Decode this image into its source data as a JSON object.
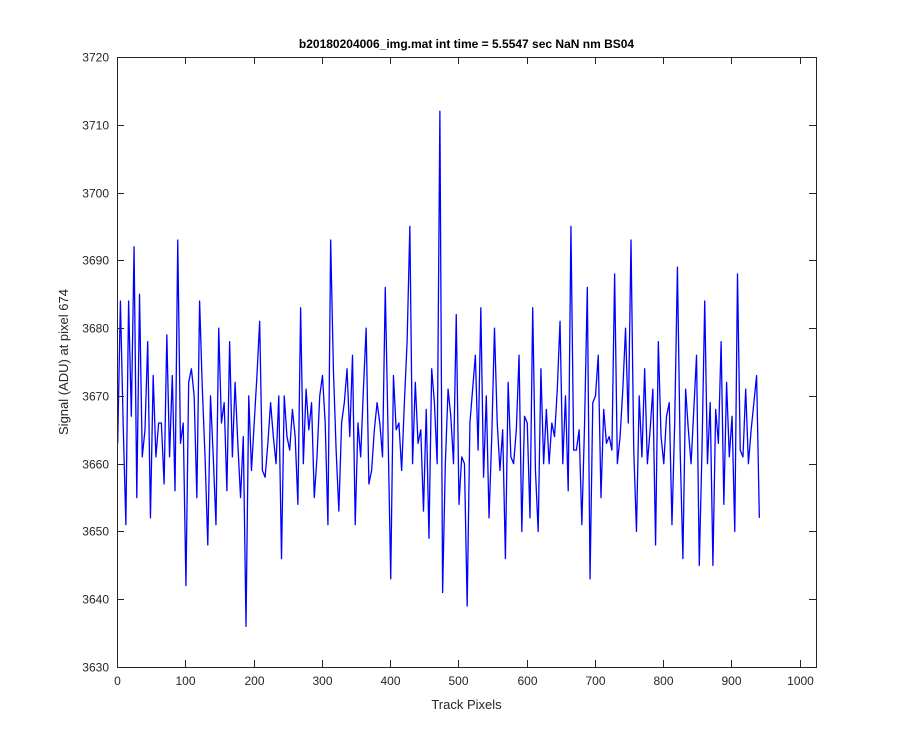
{
  "chart_data": {
    "type": "line",
    "title": "b20180204006_img.mat int time = 5.5547 sec  NaN nm BS04",
    "xlabel": "Track Pixels",
    "ylabel": "Signal (ADU) at pixel 674",
    "xlim": [
      0,
      1024
    ],
    "ylim": [
      3630,
      3720
    ],
    "xticks": [
      0,
      100,
      200,
      300,
      400,
      500,
      600,
      700,
      800,
      900,
      1000
    ],
    "yticks": [
      3630,
      3640,
      3650,
      3660,
      3670,
      3680,
      3690,
      3700,
      3710,
      3720
    ],
    "grid": false,
    "line_color": "#0000ff",
    "series": [
      {
        "name": "",
        "x_start": 1,
        "x_step": 4,
        "values": [
          3663,
          3684,
          3666,
          3651,
          3684,
          3667,
          3692,
          3655,
          3685,
          3661,
          3665,
          3678,
          3652,
          3673,
          3661,
          3666,
          3666,
          3657,
          3679,
          3661,
          3673,
          3656,
          3693,
          3663,
          3666,
          3642,
          3672,
          3674,
          3670,
          3655,
          3684,
          3671,
          3661,
          3648,
          3670,
          3661,
          3651,
          3680,
          3666,
          3669,
          3656,
          3678,
          3661,
          3672,
          3663,
          3655,
          3664,
          3636,
          3670,
          3659,
          3666,
          3673,
          3681,
          3659,
          3658,
          3663,
          3669,
          3664,
          3660,
          3670,
          3646,
          3670,
          3664,
          3662,
          3668,
          3664,
          3654,
          3683,
          3660,
          3671,
          3665,
          3669,
          3655,
          3661,
          3670,
          3673,
          3666,
          3651,
          3693,
          3674,
          3662,
          3653,
          3666,
          3669,
          3674,
          3664,
          3676,
          3651,
          3666,
          3661,
          3671,
          3680,
          3657,
          3659,
          3665,
          3669,
          3666,
          3661,
          3686,
          3665,
          3643,
          3673,
          3665,
          3666,
          3659,
          3669,
          3678,
          3695,
          3660,
          3672,
          3663,
          3665,
          3653,
          3668,
          3649,
          3674,
          3669,
          3660,
          3712,
          3641,
          3660,
          3671,
          3667,
          3660,
          3682,
          3654,
          3661,
          3660,
          3639,
          3666,
          3671,
          3676,
          3662,
          3683,
          3658,
          3670,
          3652,
          3664,
          3680,
          3666,
          3659,
          3665,
          3646,
          3672,
          3661,
          3660,
          3665,
          3676,
          3650,
          3667,
          3666,
          3652,
          3683,
          3659,
          3650,
          3674,
          3660,
          3668,
          3660,
          3666,
          3664,
          3671,
          3681,
          3660,
          3670,
          3656,
          3695,
          3662,
          3662,
          3665,
          3651,
          3666,
          3686,
          3643,
          3669,
          3670,
          3676,
          3655,
          3668,
          3663,
          3664,
          3662,
          3688,
          3660,
          3664,
          3671,
          3680,
          3666,
          3693,
          3662,
          3650,
          3670,
          3661,
          3674,
          3660,
          3665,
          3671,
          3648,
          3678,
          3664,
          3660,
          3667,
          3669,
          3651,
          3666,
          3689,
          3662,
          3646,
          3671,
          3665,
          3660,
          3668,
          3676,
          3645,
          3662,
          3684,
          3660,
          3669,
          3645,
          3668,
          3663,
          3678,
          3654,
          3672,
          3661,
          3667,
          3650,
          3688,
          3662,
          3661,
          3671,
          3660,
          3665,
          3669,
          3673,
          3652
        ]
      }
    ]
  }
}
